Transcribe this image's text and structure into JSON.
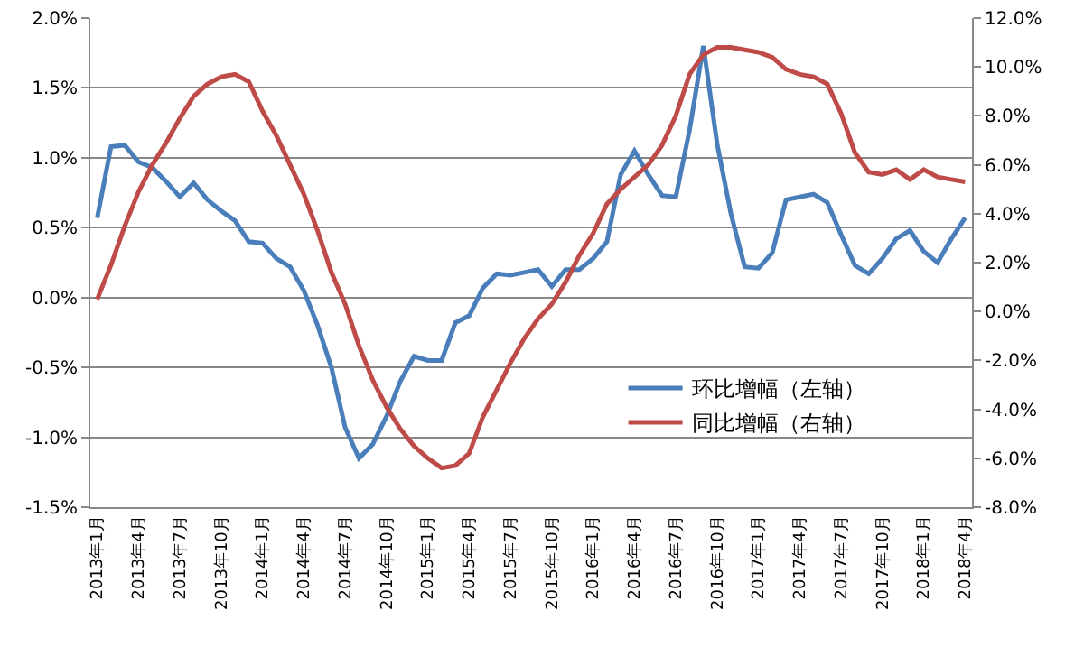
{
  "chart_data": {
    "type": "line",
    "categories": [
      "2013年1月",
      null,
      null,
      "2013年4月",
      null,
      null,
      "2013年7月",
      null,
      null,
      "2013年10月",
      null,
      null,
      "2014年1月",
      null,
      null,
      "2014年4月",
      null,
      null,
      "2014年7月",
      null,
      null,
      "2014年10月",
      null,
      null,
      "2015年1月",
      null,
      null,
      "2015年4月",
      null,
      null,
      "2015年7月",
      null,
      null,
      "2015年10月",
      null,
      null,
      "2016年1月",
      null,
      null,
      "2016年4月",
      null,
      null,
      "2016年7月",
      null,
      null,
      "2016年10月",
      null,
      null,
      "2017年1月",
      null,
      null,
      "2017年4月",
      null,
      null,
      "2017年7月",
      null,
      null,
      "2017年10月",
      null,
      null,
      "2018年1月",
      null,
      null,
      "2018年4月"
    ],
    "series": [
      {
        "name": "环比增幅（左轴）",
        "color": "#4a7ebb",
        "values": [
          0.57,
          1.08,
          1.09,
          0.97,
          0.93,
          0.83,
          0.72,
          0.82,
          0.7,
          0.62,
          0.55,
          0.4,
          0.39,
          0.28,
          0.22,
          0.05,
          -0.2,
          -0.5,
          -0.93,
          -1.15,
          -1.05,
          -0.85,
          -0.6,
          -0.42,
          -0.45,
          -0.45,
          -0.18,
          -0.13,
          0.07,
          0.17,
          0.16,
          0.18,
          0.2,
          0.08,
          0.2,
          0.2,
          0.28,
          0.4,
          0.88,
          1.05,
          0.88,
          0.73,
          0.72,
          1.2,
          1.8,
          1.1,
          0.6,
          0.22,
          0.21,
          0.32,
          0.7,
          0.72,
          0.74,
          0.68,
          0.45,
          0.23,
          0.17,
          0.28,
          0.42,
          0.48,
          0.33,
          0.25,
          0.42,
          0.57
        ]
      },
      {
        "name": "同比增幅（右轴）",
        "color": "#be4b48",
        "axis": "y2",
        "values": [
          0.5,
          1.9,
          3.5,
          4.9,
          6.0,
          6.9,
          7.9,
          8.8,
          9.3,
          9.6,
          9.7,
          9.4,
          8.2,
          7.2,
          6.0,
          4.8,
          3.3,
          1.6,
          0.3,
          -1.4,
          -2.8,
          -3.9,
          -4.8,
          -5.5,
          -6.0,
          -6.4,
          -6.3,
          -5.8,
          -4.3,
          -3.2,
          -2.1,
          -1.1,
          -0.3,
          0.3,
          1.2,
          2.3,
          3.2,
          4.4,
          5.0,
          5.5,
          6.0,
          6.8,
          8.0,
          9.7,
          10.5,
          10.8,
          10.8,
          10.7,
          10.6,
          10.4,
          9.9,
          9.7,
          9.6,
          9.3,
          8.1,
          6.5,
          5.7,
          5.6,
          5.8,
          5.4,
          5.8,
          5.5,
          5.4,
          5.3
        ]
      }
    ],
    "ylim": [
      -1.5,
      2.0
    ],
    "yticks": [
      {
        "value": -1.5,
        "label": "-1.5%"
      },
      {
        "value": -1.0,
        "label": "-1.0%"
      },
      {
        "value": -0.5,
        "label": "-0.5%"
      },
      {
        "value": 0,
        "label": "0.0%"
      },
      {
        "value": 0.5,
        "label": "0.5%"
      },
      {
        "value": 1.0,
        "label": "1.0%"
      },
      {
        "value": 1.5,
        "label": "1.5%"
      },
      {
        "value": 2.0,
        "label": "2.0%"
      }
    ],
    "y2lim": [
      -8,
      12
    ],
    "y2ticks": [
      {
        "value": -8,
        "label": "-8.0%"
      },
      {
        "value": -6,
        "label": "-6.0%"
      },
      {
        "value": -4,
        "label": "-4.0%"
      },
      {
        "value": -2,
        "label": "-2.0%"
      },
      {
        "value": 0,
        "label": "0.0%"
      },
      {
        "value": 2,
        "label": "2.0%"
      },
      {
        "value": 4,
        "label": "4.0%"
      },
      {
        "value": 6,
        "label": "6.0%"
      },
      {
        "value": 8,
        "label": "8.0%"
      },
      {
        "value": 10,
        "label": "10.0%"
      },
      {
        "value": 12,
        "label": "12.0%"
      }
    ],
    "grid": "y",
    "legend": "bottom right",
    "marker": "none",
    "line_style": "solid"
  }
}
